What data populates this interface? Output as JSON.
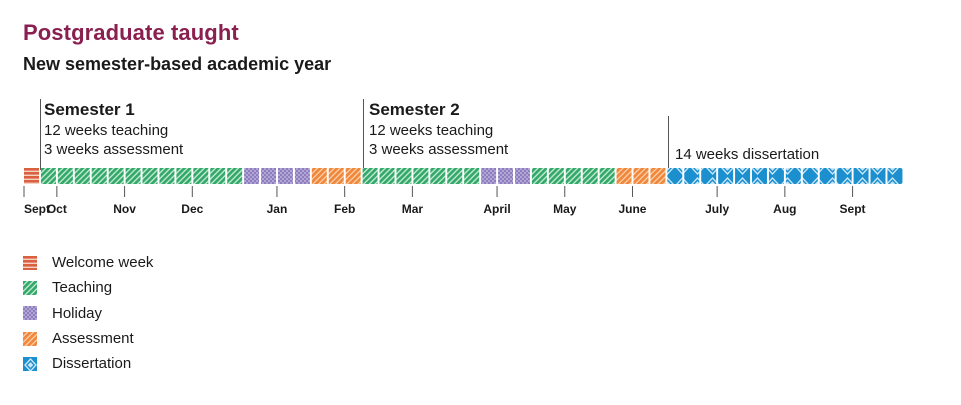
{
  "header": {
    "title": "Postgraduate taught",
    "subtitle": "New semester-based academic year"
  },
  "semesters": [
    {
      "heading": "Semester 1",
      "lines": [
        "12 weeks teaching",
        "3 weeks assessment"
      ]
    },
    {
      "heading": "Semester 2",
      "lines": [
        "12 weeks teaching",
        "3 weeks assessment"
      ]
    }
  ],
  "dissertation_note": "14 weeks dissertation",
  "weeks": [
    "welcome",
    "teaching",
    "teaching",
    "teaching",
    "teaching",
    "teaching",
    "teaching",
    "teaching",
    "teaching",
    "teaching",
    "teaching",
    "teaching",
    "teaching",
    "holiday",
    "holiday",
    "holiday",
    "holiday",
    "assessment",
    "assessment",
    "assessment",
    "teaching",
    "teaching",
    "teaching",
    "teaching",
    "teaching",
    "teaching",
    "teaching",
    "holiday",
    "holiday",
    "holiday",
    "teaching",
    "teaching",
    "teaching",
    "teaching",
    "teaching",
    "assessment",
    "assessment",
    "assessment",
    "dissertation",
    "dissertation",
    "dissertation",
    "dissertation",
    "dissertation",
    "dissertation",
    "dissertation",
    "dissertation",
    "dissertation",
    "dissertation",
    "dissertation",
    "dissertation",
    "dissertation",
    "dissertation"
  ],
  "months": [
    {
      "label": "Sept",
      "week": 0
    },
    {
      "label": "Oct",
      "week": 2
    },
    {
      "label": "Nov",
      "week": 6
    },
    {
      "label": "Dec",
      "week": 10
    },
    {
      "label": "Jan",
      "week": 15
    },
    {
      "label": "Feb",
      "week": 19
    },
    {
      "label": "Mar",
      "week": 23
    },
    {
      "label": "April",
      "week": 28
    },
    {
      "label": "May",
      "week": 32
    },
    {
      "label": "June",
      "week": 36
    },
    {
      "label": "July",
      "week": 41
    },
    {
      "label": "Aug",
      "week": 45
    },
    {
      "label": "Sept",
      "week": 49
    }
  ],
  "legend": [
    {
      "key": "welcome",
      "label": "Welcome week"
    },
    {
      "key": "teaching",
      "label": "Teaching"
    },
    {
      "key": "holiday",
      "label": "Holiday"
    },
    {
      "key": "assessment",
      "label": "Assessment"
    },
    {
      "key": "dissertation",
      "label": "Dissertation"
    }
  ],
  "colors": {
    "welcome": "#d9613f",
    "teaching": "#34a86a",
    "holiday": "#8d7dbf",
    "assessment": "#f0873a",
    "dissertation": "#1c8fcf",
    "title": "#8a2050"
  }
}
